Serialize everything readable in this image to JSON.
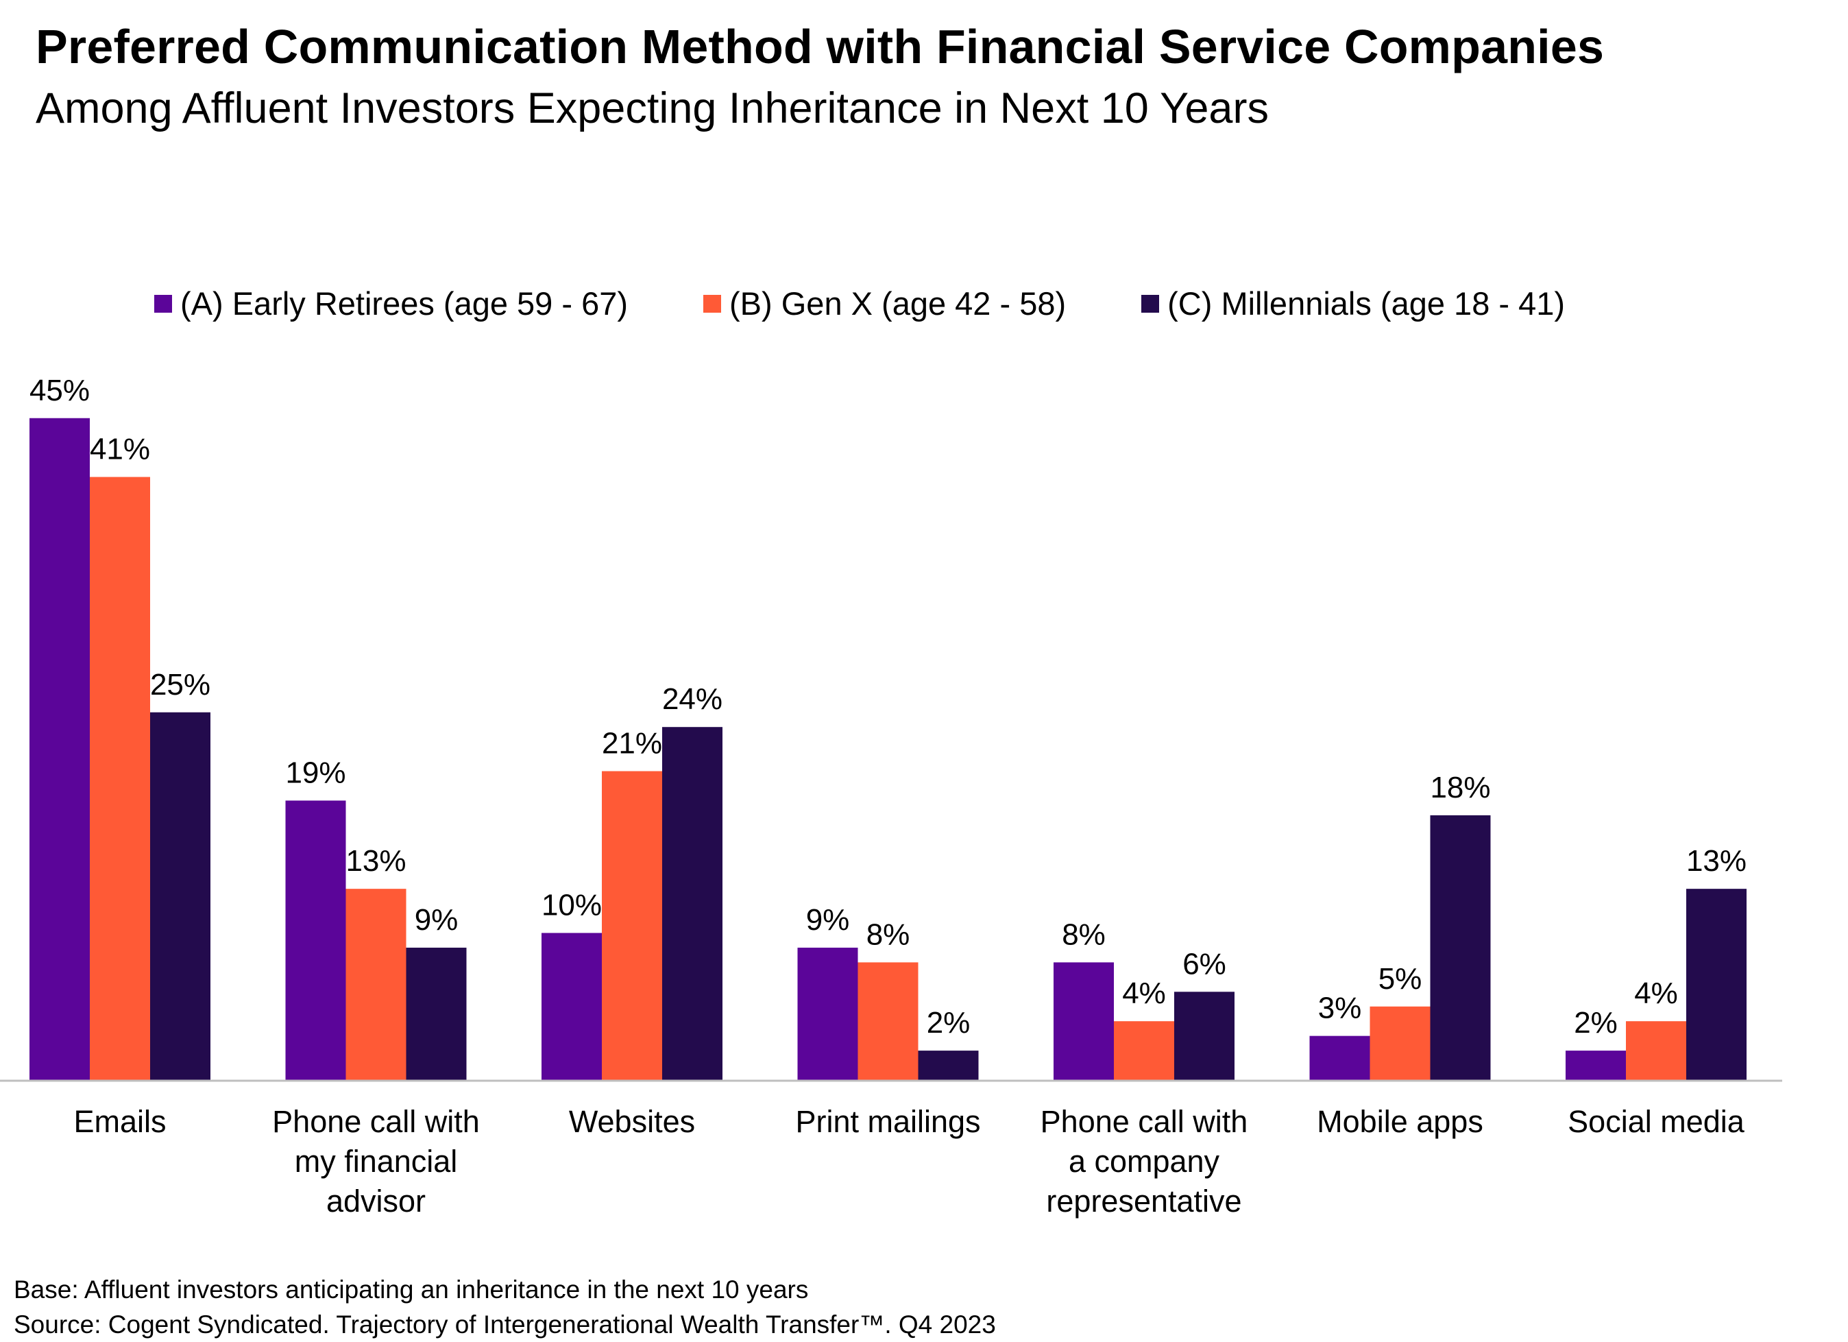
{
  "title": "Preferred Communication Method with Financial Service Companies",
  "subtitle": "Among Affluent Investors Expecting Inheritance in Next 10 Years",
  "footnotes": {
    "base": "Base: Affluent investors anticipating an inheritance in the next 10 years",
    "source": "Source: Cogent Syndicated. Trajectory of Intergenerational Wealth Transfer™. Q4 2023"
  },
  "chart_data": {
    "type": "bar",
    "categories": [
      [
        "Emails"
      ],
      [
        "Phone call with",
        "my financial",
        "advisor"
      ],
      [
        "Websites"
      ],
      [
        "Print mailings"
      ],
      [
        "Phone call with",
        "a company",
        "representative"
      ],
      [
        "Mobile apps"
      ],
      [
        "Social media"
      ]
    ],
    "series": [
      {
        "name": "(A) Early Retirees (age 59 - 67)",
        "color": "#5b0599",
        "values": [
          45,
          19,
          10,
          9,
          8,
          3,
          2
        ],
        "labels": [
          "45%",
          "19%",
          "10%",
          "9%",
          "8%",
          "3%",
          "2%"
        ]
      },
      {
        "name": "(B) Gen X (age 42 - 58)",
        "color": "#ff5a36",
        "values": [
          41,
          13,
          21,
          8,
          4,
          5,
          4
        ],
        "labels": [
          "41%",
          "13%",
          "21%",
          "8%",
          "4%",
          "5%",
          "4%"
        ]
      },
      {
        "name": "(C) Millennials (age 18 - 41)",
        "color": "#230b4d",
        "values": [
          25,
          9,
          24,
          2,
          6,
          18,
          13
        ],
        "labels": [
          "25%",
          "9%",
          "24%",
          "2%",
          "6%",
          "18%",
          "13%"
        ]
      }
    ],
    "legend_position": "top",
    "grid": false,
    "y_axis_visible": false,
    "ylim": [
      0,
      45
    ]
  }
}
